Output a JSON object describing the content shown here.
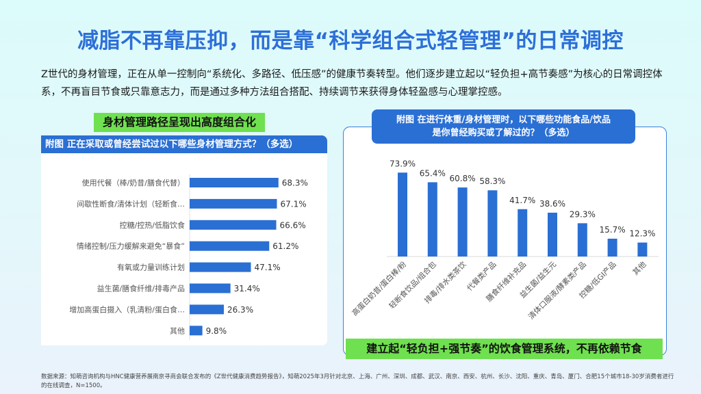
{
  "title": "减脂不再靠压抑，而是靠“科学组合式轻管理”的日常调控",
  "intro": "Z世代的身材管理，正在从单一控制向“系统化、多路径、低压感”的健康节奏转型。他们逐步建立起以“轻负担+高节奏感”为核心的日常调控体系，不再盲目节食或只靠意志力，而是通过多种方法组合搭配、持续调节来获得身体轻盈感与心理掌控感。",
  "colors": {
    "title": "#2d6fd8",
    "bar": "#2a6fd3",
    "highlight": "#6fe04f"
  },
  "left_panel": {
    "tag": "身材管理路径呈现出高度组合化"
  },
  "right_panel": {
    "tag": "建立起“轻负担+强节奏”的饮食管理系统，不再依赖节食"
  },
  "chart_data": [
    {
      "type": "bar",
      "orientation": "horizontal",
      "title": "附图 正在采取或曾经尝试过以下哪些身材管理方式？（多选）",
      "categories": [
        "使用代餐（棒/奶昔/膳食代替）",
        "间歇性断食/清体计划（轻断食…",
        "控糖/控热/低脂饮食",
        "情绪控制/压力缓解来避免“暴食”",
        "有氧或力量训练计划",
        "益生菌/膳食纤维/排毒产品",
        "增加高蛋白摄入（乳清粉/蛋白食…",
        "其他"
      ],
      "values": [
        68.3,
        67.1,
        66.6,
        61.2,
        47.1,
        31.4,
        26.3,
        9.8
      ],
      "labels": [
        "68.3%",
        "67.1%",
        "66.6%",
        "61.2%",
        "47.1%",
        "31.4%",
        "26.3%",
        "9.8%"
      ],
      "unit": "%"
    },
    {
      "type": "bar",
      "orientation": "vertical",
      "title_lines": [
        "附图 在进行体重/身材管理时，以下哪些功能食品/饮品",
        "是你曾经购买或了解过的？（多选）"
      ],
      "categories": [
        "高蛋白奶昔/蛋白棒/粉",
        "轻断食饮品/组合包",
        "排毒/排水类茶饮",
        "代餐类产品",
        "膳食纤维补充品",
        "益生菌/益生元",
        "清体口服液/酵素类产品",
        "控糖/低GI产品",
        "其他"
      ],
      "values": [
        73.9,
        65.4,
        60.8,
        58.3,
        41.7,
        38.6,
        29.3,
        15.7,
        12.3
      ],
      "labels": [
        "73.9%",
        "65.4%",
        "60.8%",
        "58.3%",
        "41.7%",
        "38.6%",
        "29.3%",
        "15.7%",
        "12.3%"
      ],
      "unit": "%"
    }
  ],
  "footnote": "数据来源：知萌咨询机构与HNC健康营养展南京寻商会联合发布的《Z世代健康消费趋势报告》，知萌2025年3月针对北京、上海、广州、深圳、成都、武汉、南京、西安、杭州、长沙、沈阳、重庆、青岛、厦门、合肥15个城市18-30岁消费者进行的在线调查，N=1500。"
}
